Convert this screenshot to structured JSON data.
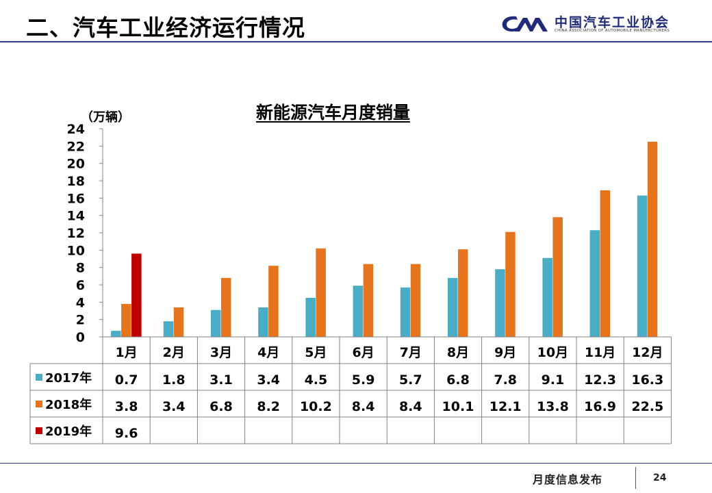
{
  "slide": {
    "title": "二、汽车工业经济运行情况",
    "logo_cn": "中国汽车工业协会",
    "logo_en": "CHINA ASSOCIATION OF AUTOMOBILE MANUFACTURERS",
    "footer_text": "月度信息发布",
    "page_number": "24"
  },
  "chart_data": {
    "type": "bar",
    "title": "新能源汽车月度销量",
    "ylabel": "（万辆）",
    "xlabel": "",
    "ylim": [
      0,
      24
    ],
    "yticks": [
      0,
      2,
      4,
      6,
      8,
      10,
      12,
      14,
      16,
      18,
      20,
      22,
      24
    ],
    "grid": false,
    "legend": "table-bottom",
    "categories": [
      "1月",
      "2月",
      "3月",
      "4月",
      "5月",
      "6月",
      "7月",
      "8月",
      "9月",
      "10月",
      "11月",
      "12月"
    ],
    "series": [
      {
        "name": "2017年",
        "color": "#4bacc6",
        "values": [
          0.7,
          1.8,
          3.1,
          3.4,
          4.5,
          5.9,
          5.7,
          6.8,
          7.8,
          9.1,
          12.3,
          16.3
        ]
      },
      {
        "name": "2018年",
        "color": "#e6741c",
        "values": [
          3.8,
          3.4,
          6.8,
          8.2,
          10.2,
          8.4,
          8.4,
          10.1,
          12.1,
          13.8,
          16.9,
          22.5
        ]
      },
      {
        "name": "2019年",
        "color": "#c00000",
        "values": [
          9.6,
          null,
          null,
          null,
          null,
          null,
          null,
          null,
          null,
          null,
          null,
          null
        ]
      }
    ]
  }
}
